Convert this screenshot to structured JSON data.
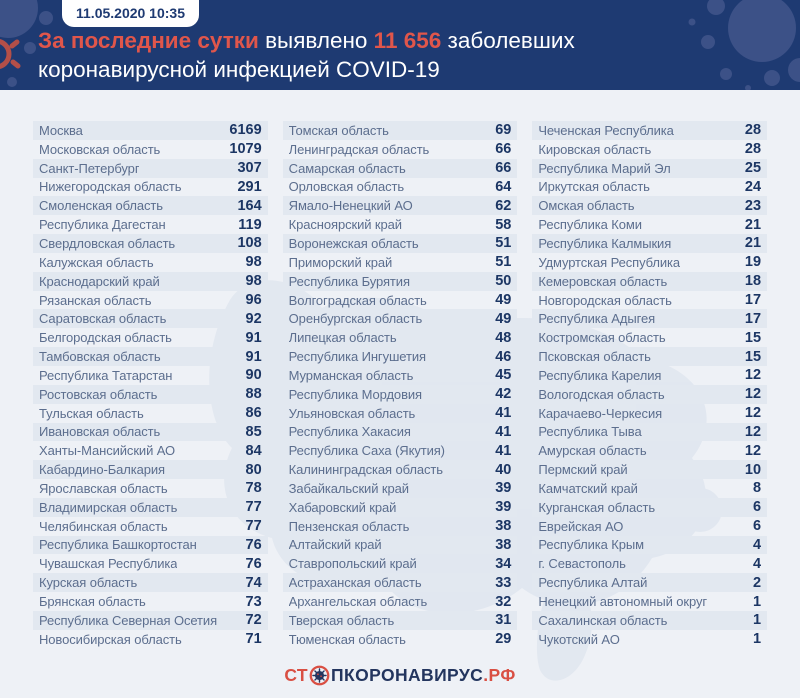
{
  "header": {
    "badge": "11.05.2020 10:35",
    "accent1": "За последние сутки",
    "text1": "выявлено",
    "accent2": "11 656",
    "text2": "заболевших",
    "line2": "коронавирусной инфекцией COVID-19"
  },
  "chart_data": {
    "type": "table",
    "title": "За последние сутки выявлено 11 656 заболевших коронавирусной инфекцией COVID-19",
    "timestamp": "11.05.2020 10:35",
    "total_new_cases": 11656,
    "columns": [
      {
        "rows": [
          [
            "Москва",
            6169
          ],
          [
            "Московская область",
            1079
          ],
          [
            "Санкт-Петербург",
            307
          ],
          [
            "Нижегородская область",
            291
          ],
          [
            "Смоленская область",
            164
          ],
          [
            "Республика Дагестан",
            119
          ],
          [
            "Свердловская область",
            108
          ],
          [
            "Калужская область",
            98
          ],
          [
            "Краснодарский край",
            98
          ],
          [
            "Рязанская область",
            96
          ],
          [
            "Саратовская область",
            92
          ],
          [
            "Белгородская область",
            91
          ],
          [
            "Тамбовская область",
            91
          ],
          [
            "Республика Татарстан",
            90
          ],
          [
            "Ростовская область",
            88
          ],
          [
            "Тульская область",
            86
          ],
          [
            "Ивановская область",
            85
          ],
          [
            "Ханты-Мансийский АО",
            84
          ],
          [
            "Кабардино-Балкария",
            80
          ],
          [
            "Ярославская область",
            78
          ],
          [
            "Владимирская область",
            77
          ],
          [
            "Челябинская область",
            77
          ],
          [
            "Республика Башкортостан",
            76
          ],
          [
            "Чувашская Республика",
            76
          ],
          [
            "Курская область",
            74
          ],
          [
            "Брянская область",
            73
          ],
          [
            "Республика Северная Осетия",
            72
          ],
          [
            "Новосибирская область",
            71
          ]
        ]
      },
      {
        "rows": [
          [
            "Томская область",
            69
          ],
          [
            "Ленинградская область",
            66
          ],
          [
            "Самарская область",
            66
          ],
          [
            "Орловская область",
            64
          ],
          [
            "Ямало-Ненецкий АО",
            62
          ],
          [
            "Красноярский край",
            58
          ],
          [
            "Воронежская область",
            51
          ],
          [
            "Приморский край",
            51
          ],
          [
            "Республика Бурятия",
            50
          ],
          [
            "Волгоградская область",
            49
          ],
          [
            "Оренбургская область",
            49
          ],
          [
            "Липецкая область",
            48
          ],
          [
            "Республика Ингушетия",
            46
          ],
          [
            "Мурманская область",
            45
          ],
          [
            "Республика Мордовия",
            42
          ],
          [
            "Ульяновская область",
            41
          ],
          [
            "Республика Хакасия",
            41
          ],
          [
            "Республика Саха (Якутия)",
            41
          ],
          [
            "Калининградская область",
            40
          ],
          [
            "Забайкальский край",
            39
          ],
          [
            "Хабаровский край",
            39
          ],
          [
            "Пензенская область",
            38
          ],
          [
            "Алтайский край",
            38
          ],
          [
            "Ставропольский край",
            34
          ],
          [
            "Астраханская область",
            33
          ],
          [
            "Архангельская область",
            32
          ],
          [
            "Тверская область",
            31
          ],
          [
            "Тюменская область",
            29
          ]
        ]
      },
      {
        "rows": [
          [
            "Чеченская Республика",
            28
          ],
          [
            "Кировская область",
            28
          ],
          [
            "Республика Марий Эл",
            25
          ],
          [
            "Иркутская область",
            24
          ],
          [
            "Омская область",
            23
          ],
          [
            "Республика Коми",
            21
          ],
          [
            "Республика Калмыкия",
            21
          ],
          [
            "Удмуртская Республика",
            19
          ],
          [
            "Кемеровская область",
            18
          ],
          [
            "Новгородская область",
            17
          ],
          [
            "Республика Адыгея",
            17
          ],
          [
            "Костромская область",
            15
          ],
          [
            "Псковская область",
            15
          ],
          [
            "Республика Карелия",
            12
          ],
          [
            "Вологодская область",
            12
          ],
          [
            "Карачаево-Черкесия",
            12
          ],
          [
            "Республика Тыва",
            12
          ],
          [
            "Амурская область",
            12
          ],
          [
            "Пермский край",
            10
          ],
          [
            "Камчатский край",
            8
          ],
          [
            "Курганская область",
            6
          ],
          [
            "Еврейская АО",
            6
          ],
          [
            "Республика Крым",
            4
          ],
          [
            "г. Севастополь",
            4
          ],
          [
            "Республика Алтай",
            2
          ],
          [
            "Ненецкий автономный округ",
            1
          ],
          [
            "Сахалинская область",
            1
          ],
          [
            "Чукотский АО",
            1
          ]
        ]
      }
    ]
  },
  "footer": {
    "logo_st": "СТ",
    "logo_main": "ПКОРОНАВИРУС",
    "logo_rf": ".РФ"
  },
  "icons": {
    "logo_icon": "virus-no-sign-icon",
    "header_decor": "virus-splat-icon"
  },
  "colors": {
    "header_bg": "#1e3a72",
    "accent_red": "#e0564b",
    "logo_red": "#d94f43",
    "logo_navy": "#23355e",
    "row_stripe": "#e2e8f0",
    "page_bg": "#eef1f6",
    "name_text": "#5c6e8e",
    "value_text": "#1c3664",
    "deco_blue": "#3c5187",
    "map_silhouette": "#dde4ee"
  }
}
